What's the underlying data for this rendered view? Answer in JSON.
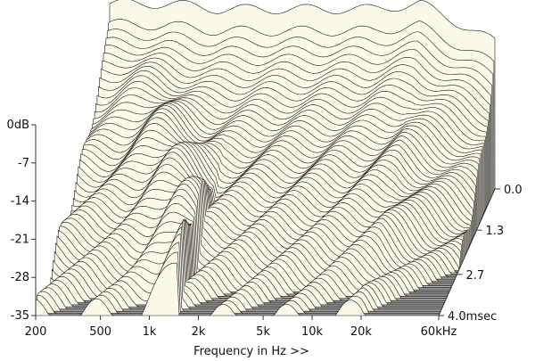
{
  "chart_data": {
    "type": "waterfall-3d",
    "title": "",
    "xlabel": "Frequency in Hz >>",
    "ylabel": "",
    "zlabel": "",
    "x_scale": "log",
    "xlim": [
      200,
      60000
    ],
    "x_ticks": [
      {
        "value": 200,
        "label": "200"
      },
      {
        "value": 500,
        "label": "500"
      },
      {
        "value": 1000,
        "label": "1k"
      },
      {
        "value": 2000,
        "label": "2k"
      },
      {
        "value": 5000,
        "label": "5k"
      },
      {
        "value": 10000,
        "label": "10k"
      },
      {
        "value": 20000,
        "label": "20k"
      },
      {
        "value": 60000,
        "label": "60kHz"
      }
    ],
    "ylim": [
      -35,
      0
    ],
    "y_ticks": [
      {
        "value": 0,
        "label": "0dB"
      },
      {
        "value": -7,
        "label": "-7"
      },
      {
        "value": -14,
        "label": "-14"
      },
      {
        "value": -21,
        "label": "-21"
      },
      {
        "value": -28,
        "label": "-28"
      },
      {
        "value": -35,
        "label": "-35"
      }
    ],
    "zlim": [
      0,
      4.0
    ],
    "z_ticks": [
      {
        "value": 0.0,
        "label": "0.0"
      },
      {
        "value": 1.3,
        "label": "1.3"
      },
      {
        "value": 2.7,
        "label": "2.7"
      },
      {
        "value": 4.0,
        "label": "4.0msec"
      }
    ],
    "slices": 60,
    "front_response_db": {
      "x": [
        200,
        500,
        1000,
        2000,
        5000,
        10000,
        20000,
        60000
      ],
      "y": [
        -1,
        -1,
        -2,
        -2,
        -2,
        -2,
        -1,
        -8
      ]
    },
    "colors": {
      "surface": "#fbf9e8",
      "floor": "#8a8a8a",
      "floor_line": "#cfcfcf",
      "line": "#1a1a1a"
    }
  }
}
